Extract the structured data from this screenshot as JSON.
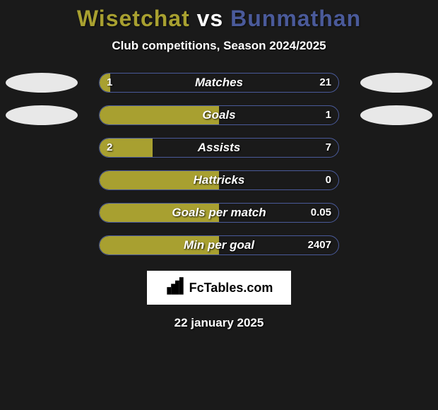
{
  "title": {
    "player1": "Wisetchat",
    "vs": "vs",
    "player2": "Bunmathan"
  },
  "subtitle": "Club competitions, Season 2024/2025",
  "colors": {
    "player1": "#a8a030",
    "player2": "#4a5a9a",
    "player1_border": "#a8a030",
    "player2_border": "#4a5a9a",
    "ellipse": "#e8e8e8",
    "background": "#1a1a1a"
  },
  "stats": [
    {
      "label": "Matches",
      "v1": "1",
      "v2": "21",
      "p1_pct": 4.5,
      "p2_pct": 95.5,
      "show_ellipses": true
    },
    {
      "label": "Goals",
      "v1": "",
      "v2": "1",
      "p1_pct": 50.0,
      "p2_pct": 50.0,
      "show_ellipses": true
    },
    {
      "label": "Assists",
      "v1": "2",
      "v2": "7",
      "p1_pct": 22.2,
      "p2_pct": 77.8,
      "show_ellipses": false
    },
    {
      "label": "Hattricks",
      "v1": "",
      "v2": "0",
      "p1_pct": 50.0,
      "p2_pct": 50.0,
      "show_ellipses": false
    },
    {
      "label": "Goals per match",
      "v1": "",
      "v2": "0.05",
      "p1_pct": 50.0,
      "p2_pct": 50.0,
      "show_ellipses": false
    },
    {
      "label": "Min per goal",
      "v1": "",
      "v2": "2407",
      "p1_pct": 50.0,
      "p2_pct": 50.0,
      "show_ellipses": false
    }
  ],
  "branding": "FcTables.com",
  "date": "22 january 2025"
}
